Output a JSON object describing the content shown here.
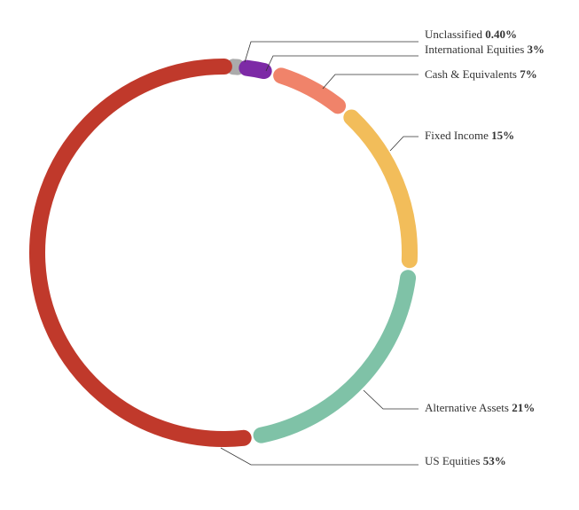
{
  "chart_data": {
    "type": "pie",
    "variant": "donut-ring",
    "slices": [
      {
        "label": "US Equities",
        "pct_text": "53%",
        "value": 53,
        "color": "#c0392b"
      },
      {
        "label": "Alternative Assets",
        "pct_text": "21%",
        "value": 21,
        "color": "#7fc2a7"
      },
      {
        "label": "Fixed Income",
        "pct_text": "15%",
        "value": 15,
        "color": "#f2bd5a"
      },
      {
        "label": "Cash & Equivalents",
        "pct_text": "7%",
        "value": 7,
        "color": "#f0836a"
      },
      {
        "label": "International Equities",
        "pct_text": "3%",
        "value": 3,
        "color": "#7d2aa6"
      },
      {
        "label": "Unclassified",
        "pct_text": "0.40%",
        "value": 0.4,
        "color": "#ababab"
      }
    ],
    "legend": "right, with leader lines"
  }
}
